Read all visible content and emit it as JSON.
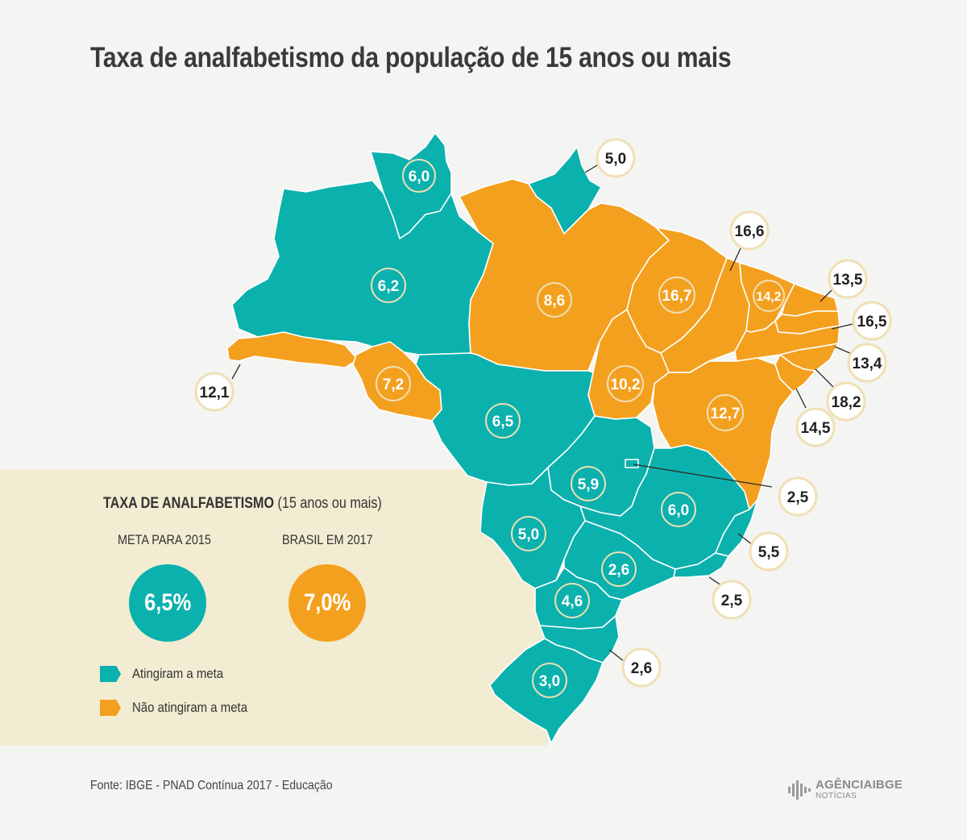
{
  "title": "Taxa de analfabetismo da população de 15 anos ou mais",
  "colors": {
    "met": "#0bb1ad",
    "not_met": "#f4a01f",
    "background": "#f4f4f2",
    "panel": "#f2ecd2",
    "circle_outline": "#efe0b5"
  },
  "regions": [
    {
      "state": "RR",
      "value": "6,0",
      "met": true
    },
    {
      "state": "AP",
      "value": "5,0",
      "met": true
    },
    {
      "state": "AM",
      "value": "6,2",
      "met": true
    },
    {
      "state": "PA",
      "value": "8,6",
      "met": false
    },
    {
      "state": "MA",
      "value": "16,7",
      "met": false
    },
    {
      "state": "PI",
      "value": "16,6",
      "met": false
    },
    {
      "state": "CE",
      "value": "14,2",
      "met": false
    },
    {
      "state": "RN",
      "value": "13,5",
      "met": false
    },
    {
      "state": "PB",
      "value": "16,5",
      "met": false
    },
    {
      "state": "PE",
      "value": "13,4",
      "met": false
    },
    {
      "state": "AL",
      "value": "18,2",
      "met": false
    },
    {
      "state": "SE",
      "value": "14,5",
      "met": false
    },
    {
      "state": "AC",
      "value": "12,1",
      "met": false
    },
    {
      "state": "RO",
      "value": "7,2",
      "met": false
    },
    {
      "state": "TO",
      "value": "10,2",
      "met": false
    },
    {
      "state": "BA",
      "value": "12,7",
      "met": false
    },
    {
      "state": "MT",
      "value": "6,5",
      "met": true
    },
    {
      "state": "GO",
      "value": "5,9",
      "met": true
    },
    {
      "state": "DF",
      "value": "2,5",
      "met": true
    },
    {
      "state": "MG",
      "value": "6,0",
      "met": true
    },
    {
      "state": "MS",
      "value": "5,0",
      "met": true
    },
    {
      "state": "ES",
      "value": "5,5",
      "met": true
    },
    {
      "state": "SP",
      "value": "2,6",
      "met": true
    },
    {
      "state": "RJ",
      "value": "2,5",
      "met": true
    },
    {
      "state": "PR",
      "value": "4,6",
      "met": true
    },
    {
      "state": "SC",
      "value": "2,6",
      "met": true
    },
    {
      "state": "RS",
      "value": "3,0",
      "met": true
    }
  ],
  "panel": {
    "title": "TAXA DE ANALFABETISMO",
    "subtitle": "(15 anos ou mais)",
    "goal_label": "META PARA 2015",
    "goal_value": "6,5%",
    "brazil_label": "BRASIL EM 2017",
    "brazil_value": "7,0%",
    "legend_met": "Atingiram a meta",
    "legend_not_met": "Não atingiram a meta"
  },
  "source": "Fonte: IBGE - PNAD Contínua 2017 - Educação",
  "logo": {
    "line1": "AGÊNCIAIBGE",
    "line2": "NOTÍCIAS"
  }
}
